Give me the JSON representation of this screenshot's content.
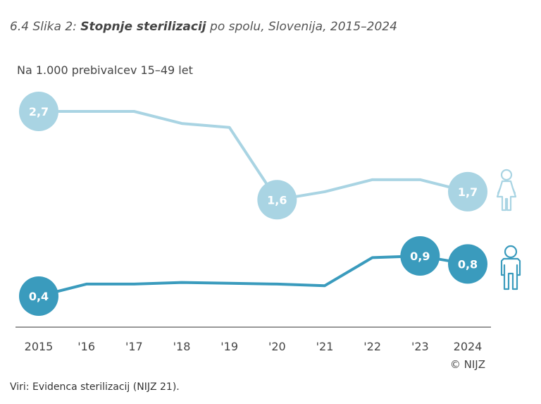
{
  "title": {
    "prefix": "6.4 Slika 2:",
    "bold": "Stopnje sterilizacij",
    "rest": "po spolu, Slovenija, 2015–2024"
  },
  "unit_label": "Na 1.000 prebivalcev 15–49 let",
  "source": "Viri: Evidenca sterilizacij (NIJZ 21).",
  "credit": "© NIJZ",
  "colors": {
    "women": "#a9d4e3",
    "men": "#3a9bbd",
    "axis": "#777777"
  },
  "chart_data": {
    "type": "line",
    "categories": [
      "2015",
      "'16",
      "'17",
      "'18",
      "'19",
      "'20",
      "'21",
      "'22",
      "'23",
      "2024"
    ],
    "series": [
      {
        "key": "women",
        "icon": "female-icon",
        "values": [
          2.7,
          2.7,
          2.7,
          2.55,
          2.5,
          1.6,
          1.7,
          1.85,
          1.85,
          1.7
        ],
        "labels": [
          {
            "index": 0,
            "text": "2,7"
          },
          {
            "index": 5,
            "text": "1,6"
          },
          {
            "index": 9,
            "text": "1,7"
          }
        ]
      },
      {
        "key": "men",
        "icon": "male-icon",
        "values": [
          0.4,
          0.55,
          0.55,
          0.57,
          0.56,
          0.55,
          0.53,
          0.88,
          0.9,
          0.8
        ],
        "labels": [
          {
            "index": 0,
            "text": "0,4"
          },
          {
            "index": 8,
            "text": "0,9"
          },
          {
            "index": 9,
            "text": "0,8"
          }
        ]
      }
    ],
    "ylim": [
      0.4,
      2.7
    ]
  }
}
